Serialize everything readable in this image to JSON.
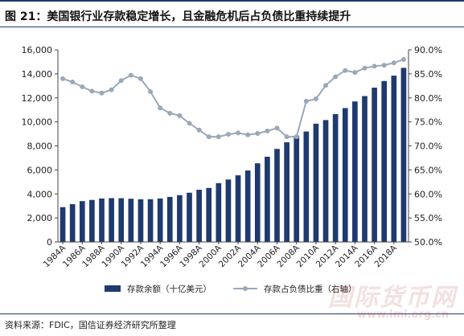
{
  "figure": {
    "title": "图 21：美国银行业存款稳定增长，且金融危机后占负债比重持续提升",
    "source": "资料来源：FDIC，国信证券经济研究所整理",
    "watermark": "国际货币网",
    "watermark_url": "www.imi.org.cn"
  },
  "chart_data": {
    "type": "bar",
    "categories": [
      "1984A",
      "1985A",
      "1986A",
      "1987A",
      "1988A",
      "1989A",
      "1990A",
      "1991A",
      "1992A",
      "1993A",
      "1994A",
      "1995A",
      "1996A",
      "1997A",
      "1998A",
      "1999A",
      "2000A",
      "2001A",
      "2002A",
      "2003A",
      "2004A",
      "2005A",
      "2006A",
      "2007A",
      "2008A",
      "2009A",
      "2010A",
      "2011A",
      "2012A",
      "2013A",
      "2014A",
      "2015A",
      "2016A",
      "2017A",
      "2018A",
      "2019A"
    ],
    "tick_labels": [
      "1984A",
      "1986A",
      "1988A",
      "1990A",
      "1992A",
      "1994A",
      "1996A",
      "1998A",
      "2000A",
      "2002A",
      "2004A",
      "2006A",
      "2008A",
      "2010A",
      "2012A",
      "2014A",
      "2016A",
      "2018A"
    ],
    "series": [
      {
        "name": "存款余额（十亿美元）",
        "type": "bar",
        "axis": "left",
        "color": "#1f3a6e",
        "values": [
          2900,
          3150,
          3400,
          3500,
          3620,
          3650,
          3640,
          3600,
          3550,
          3560,
          3620,
          3750,
          3900,
          4100,
          4350,
          4500,
          4900,
          5200,
          5550,
          5950,
          6550,
          7100,
          7750,
          8300,
          8850,
          9200,
          9850,
          10150,
          10650,
          11150,
          11700,
          12150,
          12850,
          13400,
          13850,
          14500
        ]
      },
      {
        "name": "存款占负债比重（右轴）",
        "type": "line",
        "axis": "right",
        "color": "#9aa8b8",
        "values": [
          84.0,
          83.3,
          82.3,
          81.4,
          81.0,
          81.7,
          83.6,
          84.7,
          84.0,
          81.3,
          77.9,
          76.8,
          76.3,
          74.7,
          73.3,
          71.9,
          71.9,
          72.4,
          72.7,
          72.3,
          72.6,
          73.1,
          73.7,
          71.9,
          71.9,
          79.3,
          79.8,
          82.6,
          84.4,
          85.7,
          85.3,
          86.2,
          86.6,
          86.8,
          87.3,
          88.0
        ]
      }
    ],
    "y_left": {
      "min": 0,
      "max": 16000,
      "ticks": [
        "0",
        "2,000",
        "4,000",
        "6,000",
        "8,000",
        "10,000",
        "12,000",
        "14,000",
        "16,000"
      ]
    },
    "y_right": {
      "min": 50,
      "max": 90,
      "ticks": [
        "50.0%",
        "55.0%",
        "60.0%",
        "65.0%",
        "70.0%",
        "75.0%",
        "80.0%",
        "85.0%",
        "90.0%"
      ]
    },
    "grid": false,
    "legend_position": "bottom"
  }
}
